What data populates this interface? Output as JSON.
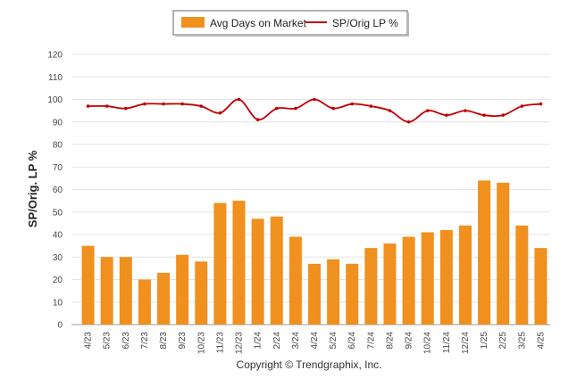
{
  "chart_data": {
    "type": "bar",
    "title": "",
    "ylabel": "SP/Orig. LP %",
    "xlabel": "",
    "ylim": [
      0,
      120
    ],
    "yticks": [
      0,
      10,
      20,
      30,
      40,
      50,
      60,
      70,
      80,
      90,
      100,
      110,
      120
    ],
    "grid": true,
    "legend_placement": "top-center",
    "categories": [
      "4/23",
      "5/23",
      "6/23",
      "7/23",
      "8/23",
      "9/23",
      "10/23",
      "11/23",
      "12/23",
      "1/24",
      "2/24",
      "3/24",
      "4/24",
      "5/24",
      "6/24",
      "7/24",
      "8/24",
      "9/24",
      "10/24",
      "11/24",
      "12/24",
      "1/25",
      "2/25",
      "3/25",
      "4/25"
    ],
    "series": [
      {
        "name": "Avg Days on Market",
        "type": "bar",
        "color": "#f0901e",
        "values": [
          35,
          30,
          30,
          20,
          23,
          31,
          28,
          54,
          55,
          47,
          48,
          39,
          27,
          29,
          27,
          34,
          36,
          39,
          41,
          42,
          44,
          64,
          63,
          44,
          34
        ]
      },
      {
        "name": "SP/Orig LP %",
        "type": "line",
        "color": "#c00000",
        "values": [
          97,
          97,
          96,
          98,
          98,
          98,
          97,
          94,
          100,
          91,
          96,
          96,
          100,
          96,
          98,
          97,
          95,
          90,
          95,
          93,
          95,
          93,
          93,
          97,
          98
        ]
      }
    ],
    "footer": "Copyright © Trendgraphix, Inc."
  }
}
